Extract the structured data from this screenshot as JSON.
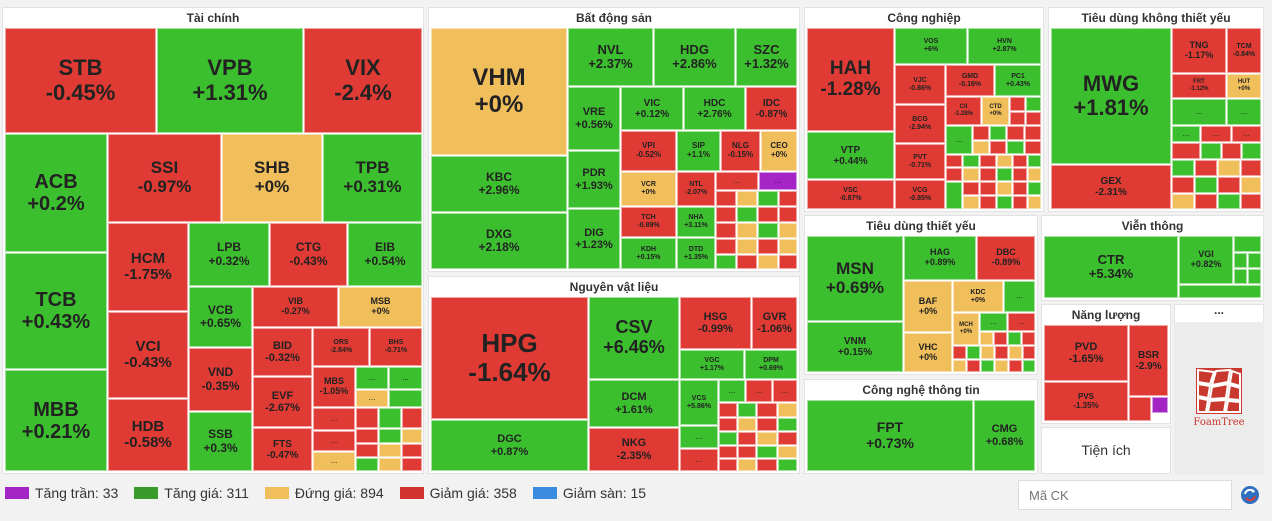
{
  "colors": {
    "ceiling": "#a424c6",
    "up": "#3cbf2e",
    "flat": "#f0be5a",
    "down": "#e03a34",
    "floor": "#3b8ce0"
  },
  "sectors": {
    "finance": "Tài chính",
    "realestate": "Bất động sản",
    "industry": "Công nghiệp",
    "discretionary": "Tiêu dùng không thiết yếu",
    "staples": "Tiêu dùng thiết yếu",
    "telecom": "Viễn thông",
    "materials": "Nguyên vật liệu",
    "energy": "Năng lượng",
    "it": "Công nghệ thông tin",
    "utilities": "Tiện ích",
    "other": "..."
  },
  "more": "...",
  "tiles": {
    "STB": {
      "t": "STB",
      "v": "-0.45%"
    },
    "VPB": {
      "t": "VPB",
      "v": "+1.31%"
    },
    "VIX": {
      "t": "VIX",
      "v": "-2.4%"
    },
    "ACB": {
      "t": "ACB",
      "v": "+0.2%"
    },
    "SSI": {
      "t": "SSI",
      "v": "-0.97%"
    },
    "SHB": {
      "t": "SHB",
      "v": "+0%"
    },
    "TPB": {
      "t": "TPB",
      "v": "+0.31%"
    },
    "TCB": {
      "t": "TCB",
      "v": "+0.43%"
    },
    "HCM": {
      "t": "HCM",
      "v": "-1.75%"
    },
    "LPB": {
      "t": "LPB",
      "v": "+0.32%"
    },
    "CTG": {
      "t": "CTG",
      "v": "-0.43%"
    },
    "EIB": {
      "t": "EIB",
      "v": "+0.54%"
    },
    "VCB": {
      "t": "VCB",
      "v": "+0.65%"
    },
    "VIB": {
      "t": "VIB",
      "v": "-0.27%"
    },
    "MSB": {
      "t": "MSB",
      "v": "+0%"
    },
    "MBB": {
      "t": "MBB",
      "v": "+0.21%"
    },
    "VCI": {
      "t": "VCI",
      "v": "-0.43%"
    },
    "BID": {
      "t": "BID",
      "v": "-0.32%"
    },
    "ORS": {
      "t": "ORS",
      "v": "-2.84%"
    },
    "BHS": {
      "t": "BHS",
      "v": "-0.71%"
    },
    "VND": {
      "t": "VND",
      "v": "-0.35%"
    },
    "EVF": {
      "t": "EVF",
      "v": "-2.67%"
    },
    "MBS": {
      "t": "MBS",
      "v": "-1.05%"
    },
    "HDB": {
      "t": "HDB",
      "v": "-0.58%"
    },
    "SSB": {
      "t": "SSB",
      "v": "+0.3%"
    },
    "FTS": {
      "t": "FTS",
      "v": "-0.47%"
    },
    "VHM": {
      "t": "VHM",
      "v": "+0%"
    },
    "NVL": {
      "t": "NVL",
      "v": "+2.37%"
    },
    "HDG": {
      "t": "HDG",
      "v": "+2.86%"
    },
    "SZC": {
      "t": "SZC",
      "v": "+1.32%"
    },
    "VRE": {
      "t": "VRE",
      "v": "+0.56%"
    },
    "VIC": {
      "t": "VIC",
      "v": "+0.12%"
    },
    "HDC": {
      "t": "HDC",
      "v": "+2.76%"
    },
    "IDC": {
      "t": "IDC",
      "v": "-0.87%"
    },
    "KBC": {
      "t": "KBC",
      "v": "+2.96%"
    },
    "PDR": {
      "t": "PDR",
      "v": "+1.93%"
    },
    "VPI": {
      "t": "VPI",
      "v": "-0.52%"
    },
    "SIP": {
      "t": "SIP",
      "v": "+1.1%"
    },
    "NLG": {
      "t": "NLG",
      "v": "-0.15%"
    },
    "CEO": {
      "t": "CEO",
      "v": "+0%"
    },
    "VCR": {
      "t": "VCR",
      "v": "+0%"
    },
    "NTL": {
      "t": "NTL",
      "v": "-2.07%"
    },
    "DXG": {
      "t": "DXG",
      "v": "+2.18%"
    },
    "DIG": {
      "t": "DIG",
      "v": "+1.23%"
    },
    "TCH": {
      "t": "TCH",
      "v": "-0.89%"
    },
    "NHA": {
      "t": "NHA",
      "v": "+3.11%"
    },
    "KDH": {
      "t": "KDH",
      "v": "+0.15%"
    },
    "DTD": {
      "t": "DTD",
      "v": "+1.35%"
    },
    "HPG": {
      "t": "HPG",
      "v": "-1.64%"
    },
    "CSV": {
      "t": "CSV",
      "v": "+6.46%"
    },
    "HSG": {
      "t": "HSG",
      "v": "-0.99%"
    },
    "GVR": {
      "t": "GVR",
      "v": "-1.06%"
    },
    "VGC": {
      "t": "VGC",
      "v": "+1.17%"
    },
    "DPM": {
      "t": "DPM",
      "v": "+0.69%"
    },
    "DCM": {
      "t": "DCM",
      "v": "+1.61%"
    },
    "VCS": {
      "t": "VCS",
      "v": "+5.86%"
    },
    "NKG": {
      "t": "NKG",
      "v": "-2.35%"
    },
    "DGC": {
      "t": "DGC",
      "v": "+0.87%"
    },
    "HAH": {
      "t": "HAH",
      "v": "-1.28%"
    },
    "VOS": {
      "t": "VOS",
      "v": "+6%"
    },
    "HVN": {
      "t": "HVN",
      "v": "+2.87%"
    },
    "VJC": {
      "t": "VJC",
      "v": "-0.86%"
    },
    "GMD": {
      "t": "GMD",
      "v": "-0.16%"
    },
    "PC1": {
      "t": "PC1",
      "v": "+0.43%"
    },
    "BCG": {
      "t": "BCG",
      "v": "-2.94%"
    },
    "CII": {
      "t": "CII",
      "v": "-1.28%"
    },
    "CTD": {
      "t": "CTD",
      "v": "+0%"
    },
    "VTP": {
      "t": "VTP",
      "v": "+0.44%"
    },
    "PVT": {
      "t": "PVT",
      "v": "-0.71%"
    },
    "VSC": {
      "t": "VSC",
      "v": "-0.87%"
    },
    "VCG": {
      "t": "VCG",
      "v": "-0.85%"
    },
    "MWG": {
      "t": "MWG",
      "v": "+1.81%"
    },
    "TNG": {
      "t": "TNG",
      "v": "-1.17%"
    },
    "TCM": {
      "t": "TCM",
      "v": "-0.84%"
    },
    "FRT": {
      "t": "FRT",
      "v": "-1.12%"
    },
    "HUT": {
      "t": "HUT",
      "v": "+0%"
    },
    "GEX": {
      "t": "GEX",
      "v": "-2.31%"
    },
    "MSN": {
      "t": "MSN",
      "v": "+0.69%"
    },
    "HAG": {
      "t": "HAG",
      "v": "+0.89%"
    },
    "DBC": {
      "t": "DBC",
      "v": "-0.89%"
    },
    "BAF": {
      "t": "BAF",
      "v": "+0%"
    },
    "KDC": {
      "t": "KDC",
      "v": "+0%"
    },
    "MCH": {
      "t": "MCH",
      "v": "+0%"
    },
    "VNM": {
      "t": "VNM",
      "v": "+0.15%"
    },
    "VHC": {
      "t": "VHC",
      "v": "+0%"
    },
    "CTR": {
      "t": "CTR",
      "v": "+5.34%"
    },
    "VGI": {
      "t": "VGI",
      "v": "+0.82%"
    },
    "PVD": {
      "t": "PVD",
      "v": "-1.65%"
    },
    "BSR": {
      "t": "BSR",
      "v": "-2.9%"
    },
    "PVS": {
      "t": "PVS",
      "v": "-1.35%"
    },
    "FPT": {
      "t": "FPT",
      "v": "+0.73%"
    },
    "CMG": {
      "t": "CMG",
      "v": "+0.68%"
    }
  },
  "legend": [
    {
      "label": "Tăng trần: 33",
      "color": "#a424c6"
    },
    {
      "label": "Tăng giá: 311",
      "color": "#3cbf2e"
    },
    {
      "label": "Đứng giá: 894",
      "color": "#f0be5a"
    },
    {
      "label": "Giảm giá: 358",
      "color": "#e03a34"
    },
    {
      "label": "Giảm sàn: 15",
      "color": "#3b8ce0"
    }
  ],
  "search": {
    "placeholder": "Mã CK"
  },
  "foamtree": "FoamTree"
}
